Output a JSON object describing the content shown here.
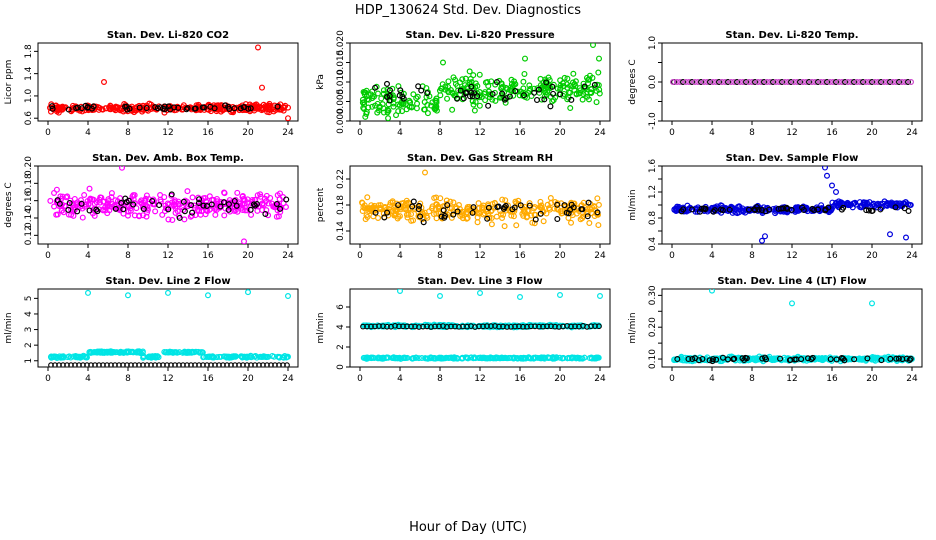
{
  "figure": {
    "title": "HDP_130624  Std. Dev. Diagnostics",
    "xlabel": "Hour of Day (UTC)"
  },
  "chart_data": [
    {
      "type": "scatter",
      "title": "Stan. Dev. Li-820 CO2",
      "ylabel": "Licor ppm",
      "xlim": [
        -1,
        25
      ],
      "ylim": [
        0.55,
        1.95
      ],
      "xticks": [
        0,
        4,
        8,
        12,
        16,
        20,
        24
      ],
      "yticks": [
        0.6,
        1.0,
        1.4,
        1.8
      ],
      "ytick_labels": [
        "0.6",
        "1.0",
        "1.4",
        "1.8"
      ],
      "color": "#ff0000",
      "center": 0.78,
      "spread": 0.06,
      "outliers": [
        [
          5.6,
          1.25
        ],
        [
          21.0,
          1.87
        ],
        [
          21.4,
          1.15
        ],
        [
          24.0,
          0.6
        ]
      ]
    },
    {
      "type": "scatter",
      "title": "Stan. Dev. Li-820 Pressure",
      "ylabel": "kPa",
      "xlim": [
        -1,
        25
      ],
      "ylim": [
        0,
        0.02
      ],
      "xticks": [
        0,
        4,
        8,
        12,
        16,
        20,
        24
      ],
      "yticks": [
        0,
        0.005,
        0.01,
        0.015,
        0.02
      ],
      "ytick_labels": [
        "0.000",
        "0.005",
        "0.010",
        "0.015",
        "0.020"
      ],
      "color": "#00cc00",
      "center": 0.007,
      "spread": 0.004,
      "outliers": [
        [
          16.5,
          0.016
        ],
        [
          23.3,
          0.0195
        ],
        [
          23.9,
          0.016
        ],
        [
          8.3,
          0.015
        ]
      ]
    },
    {
      "type": "scatter",
      "title": "Stan. Dev. Li-820 Temp.",
      "ylabel": "degrees C",
      "xlim": [
        -1,
        25
      ],
      "ylim": [
        -1,
        1
      ],
      "xticks": [
        0,
        4,
        8,
        12,
        16,
        20,
        24
      ],
      "yticks": [
        -1,
        -0.5,
        0,
        0.5,
        1
      ],
      "ytick_labels": [
        "-1.0",
        "",
        "0.0",
        "",
        "1.0"
      ],
      "color": "#cc44cc",
      "center": 0.0,
      "spread": 0.0,
      "outliers": [
        [
          0.1,
          0.0
        ]
      ]
    },
    {
      "type": "scatter",
      "title": "Stan. Dev. Amb. Box Temp.",
      "ylabel": "degrees C",
      "xlim": [
        -1,
        25
      ],
      "ylim": [
        0.11,
        0.2
      ],
      "xticks": [
        0,
        4,
        8,
        12,
        16,
        20,
        24
      ],
      "yticks": [
        0.12,
        0.14,
        0.16,
        0.18,
        0.2
      ],
      "ytick_labels": [
        "0.12",
        "0.14",
        "0.16",
        "0.18",
        "0.20"
      ],
      "color": "#ff00ff",
      "center": 0.155,
      "spread": 0.014,
      "outliers": [
        [
          19.6,
          0.113
        ],
        [
          7.4,
          0.198
        ]
      ]
    },
    {
      "type": "scatter",
      "title": "Stan. Dev. Gas Stream RH",
      "ylabel": "percent",
      "xlim": [
        -1,
        25
      ],
      "ylim": [
        0.12,
        0.24
      ],
      "xticks": [
        0,
        4,
        8,
        12,
        16,
        20,
        24
      ],
      "yticks": [
        0.14,
        0.18,
        0.22
      ],
      "ytick_labels": [
        "0.14",
        "0.18",
        "0.22"
      ],
      "color": "#ffaa00",
      "center": 0.172,
      "spread": 0.018,
      "outliers": [
        [
          6.5,
          0.23
        ]
      ]
    },
    {
      "type": "scatter",
      "title": "Stan. Dev. Sample Flow",
      "ylabel": "ml/min",
      "xlim": [
        -1,
        25
      ],
      "ylim": [
        0.4,
        1.6
      ],
      "xticks": [
        0,
        4,
        8,
        12,
        16,
        20,
        24
      ],
      "yticks": [
        0.4,
        0.6,
        0.8,
        1.0,
        1.2,
        1.4,
        1.6
      ],
      "ytick_labels": [
        "0.4",
        "",
        "0.8",
        "",
        "1.2",
        "",
        "1.6"
      ],
      "color": "#0000dd",
      "center": 0.93,
      "spread": 0.05,
      "outliers": [
        [
          15.3,
          1.6
        ],
        [
          15.5,
          1.45
        ],
        [
          9.0,
          0.45
        ],
        [
          9.3,
          0.52
        ],
        [
          21.8,
          0.55
        ],
        [
          23.4,
          0.5
        ],
        [
          16.0,
          1.3
        ],
        [
          16.4,
          1.2
        ]
      ]
    },
    {
      "type": "scatter",
      "title": "Stan. Dev. Line 2 Flow",
      "ylabel": "ml/min",
      "xlim": [
        -1,
        25
      ],
      "ylim": [
        0.6,
        5.6
      ],
      "xticks": [
        0,
        4,
        8,
        12,
        16,
        20,
        24
      ],
      "yticks": [
        1,
        2,
        3,
        4,
        5
      ],
      "ytick_labels": [
        "1",
        "2",
        "3",
        "4",
        "5"
      ],
      "color": "#00e5e5",
      "center": 1.25,
      "spread": 0.05,
      "outliers": [
        [
          4.0,
          5.35
        ],
        [
          8.0,
          5.2
        ],
        [
          12.0,
          5.35
        ],
        [
          16.0,
          5.2
        ],
        [
          20.0,
          5.4
        ],
        [
          24.0,
          5.15
        ]
      ]
    },
    {
      "type": "scatter",
      "title": "Stan. Dev. Line 3 Flow",
      "ylabel": "ml/min",
      "xlim": [
        -1,
        25
      ],
      "ylim": [
        0,
        7.8
      ],
      "xticks": [
        0,
        4,
        8,
        12,
        16,
        20,
        24
      ],
      "yticks": [
        0,
        2,
        4,
        6
      ],
      "ytick_labels": [
        "0",
        "2",
        "4",
        "6"
      ],
      "color": "#00e5e5",
      "center": 4.1,
      "spread": 0.1,
      "outliers": [
        [
          4.0,
          7.6
        ],
        [
          8.0,
          7.1
        ],
        [
          12.0,
          7.4
        ],
        [
          16.0,
          7.0
        ],
        [
          20.0,
          7.2
        ],
        [
          24.0,
          7.1
        ]
      ]
    },
    {
      "type": "scatter",
      "title": "Stan. Dev. Line 4 (LT) Flow",
      "ylabel": "ml/min",
      "xlim": [
        -1,
        25
      ],
      "ylim": [
        0.075,
        0.32
      ],
      "xticks": [
        0,
        4,
        8,
        12,
        16,
        20,
        24
      ],
      "yticks": [
        0.1,
        0.15,
        0.2,
        0.25,
        0.3
      ],
      "ytick_labels": [
        "0.10",
        "",
        "0.20",
        "",
        "0.30"
      ],
      "color": "#00e5e5",
      "center": 0.1,
      "spread": 0.006,
      "outliers": [
        [
          4.0,
          0.315
        ],
        [
          12.0,
          0.275
        ],
        [
          20.0,
          0.275
        ]
      ]
    }
  ]
}
